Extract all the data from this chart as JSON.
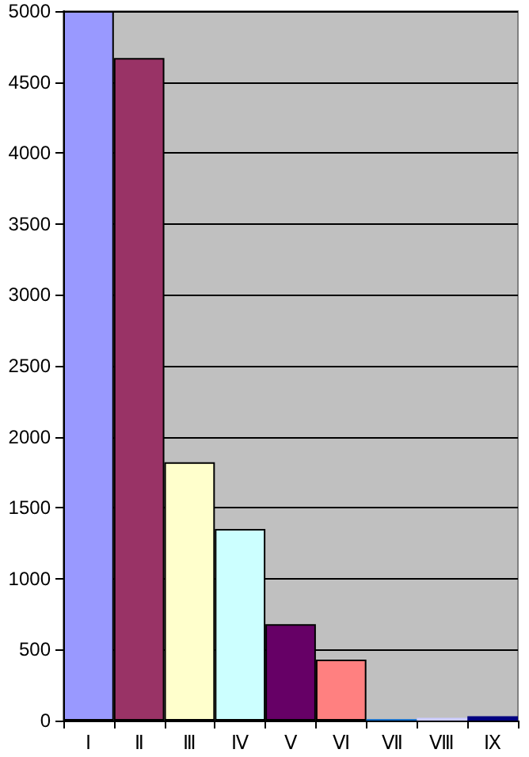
{
  "chart_data": {
    "type": "bar",
    "categories": [
      "Ⅰ",
      "Ⅱ",
      "Ⅲ",
      "Ⅳ",
      "Ⅴ",
      "Ⅵ",
      "Ⅶ",
      "Ⅷ",
      "Ⅸ"
    ],
    "values": [
      5000,
      4670,
      1820,
      1350,
      680,
      430,
      10,
      20,
      30
    ],
    "colors": [
      "#9999ff",
      "#993366",
      "#ffffcc",
      "#ccffff",
      "#660066",
      "#ff8080",
      "#0066cc",
      "#ccccff",
      "#000080"
    ],
    "ylim": [
      0,
      5000
    ],
    "yticks": [
      0,
      500,
      1000,
      1500,
      2000,
      2500,
      3000,
      3500,
      4000,
      4500,
      5000
    ],
    "grid": "y"
  }
}
